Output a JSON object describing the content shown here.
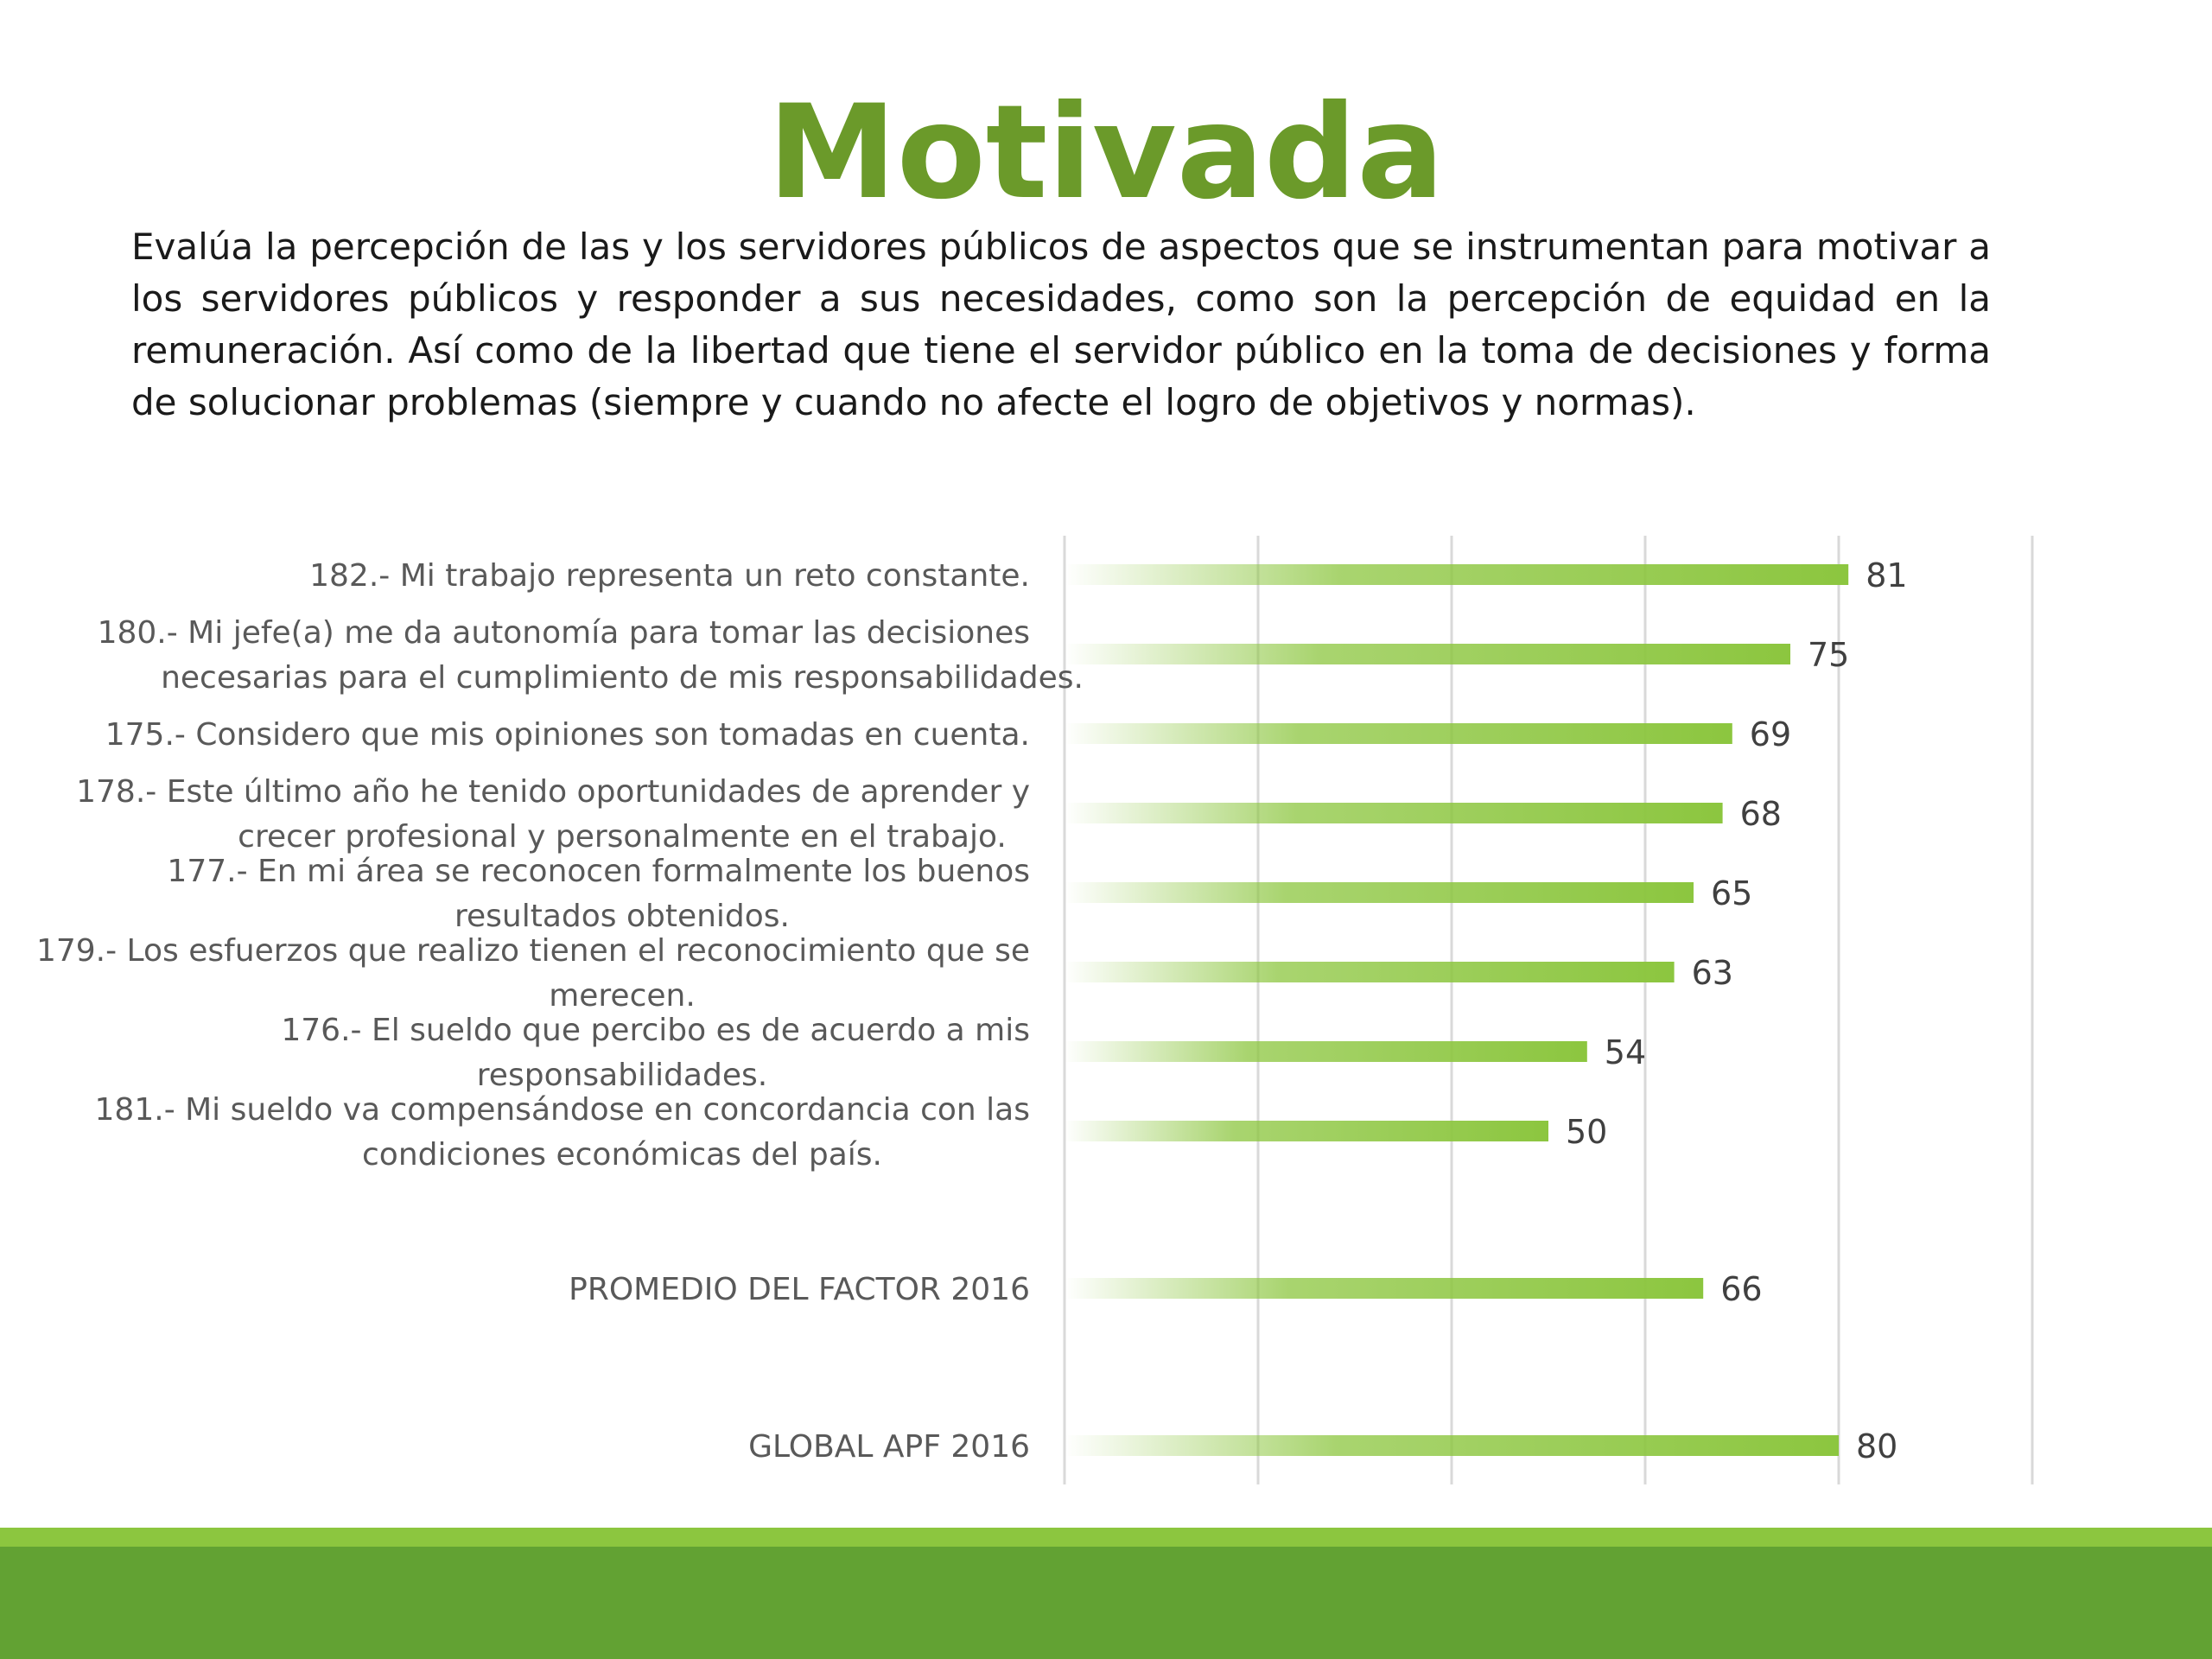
{
  "slide": {
    "title": "Motivada",
    "description": "Evalúa la percepción de las y los servidores públicos de aspectos que se instrumentan para motivar a los servidores públicos y responder a sus necesidades, como son la percepción de equidad en la remuneración. Así como de la libertad que tiene el servidor público en la toma de decisiones y forma de solucionar problemas (siempre y cuando no afecte el logro de objetivos y normas)."
  },
  "colors": {
    "title": "#6b9a2a",
    "bar": "#8cc63f",
    "band_light": "#8cc63f",
    "band_dark": "#62a233",
    "gridline": "#d9d9d9",
    "label_text": "#595959"
  },
  "chart_data": {
    "type": "bar",
    "orientation": "horizontal",
    "title": "",
    "xlabel": "",
    "ylabel": "",
    "xlim": [
      0,
      100
    ],
    "grid": true,
    "legend": "none",
    "categories": [
      [
        "182.- Mi trabajo representa un reto constante."
      ],
      [
        "180.- Mi jefe(a) me da autonomía para tomar las decisiones",
        "necesarias para el cumplimiento de mis responsabilidades."
      ],
      [
        "175.- Considero que mis opiniones son tomadas en cuenta."
      ],
      [
        "178.- Este último año he tenido oportunidades de aprender y",
        "crecer profesional y personalmente en el trabajo."
      ],
      [
        "177.- En mi área se reconocen formalmente los buenos",
        "resultados obtenidos."
      ],
      [
        "179.- Los esfuerzos que realizo tienen el reconocimiento que se",
        "merecen."
      ],
      [
        "176.- El sueldo que percibo es de acuerdo a mis",
        "responsabilidades."
      ],
      [
        "181.- Mi sueldo va compensándose en concordancia con las",
        "condiciones económicas del país."
      ],
      [
        "PROMEDIO DEL FACTOR   2016"
      ],
      [
        "GLOBAL APF   2016"
      ]
    ],
    "values": [
      81,
      75,
      69,
      68,
      65,
      63,
      54,
      50,
      66,
      80
    ]
  }
}
